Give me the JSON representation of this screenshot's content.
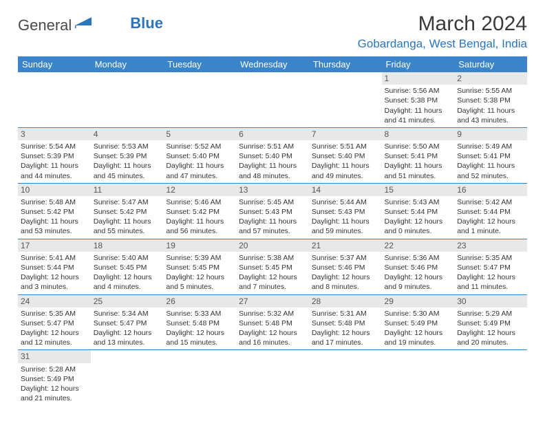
{
  "logo": {
    "text1": "General",
    "text2": "Blue"
  },
  "title": "March 2024",
  "location": "Gobardanga, West Bengal, India",
  "colors": {
    "header_bg": "#3a85c9",
    "accent": "#2a75bb",
    "daynum_bg": "#e8e8e8",
    "row_border": "#3a85c9",
    "text": "#333333",
    "bg": "#ffffff"
  },
  "day_headers": [
    "Sunday",
    "Monday",
    "Tuesday",
    "Wednesday",
    "Thursday",
    "Friday",
    "Saturday"
  ],
  "weeks": [
    [
      null,
      null,
      null,
      null,
      null,
      {
        "n": "1",
        "sr": "5:56 AM",
        "ss": "5:38 PM",
        "dl": "11 hours and 41 minutes."
      },
      {
        "n": "2",
        "sr": "5:55 AM",
        "ss": "5:38 PM",
        "dl": "11 hours and 43 minutes."
      }
    ],
    [
      {
        "n": "3",
        "sr": "5:54 AM",
        "ss": "5:39 PM",
        "dl": "11 hours and 44 minutes."
      },
      {
        "n": "4",
        "sr": "5:53 AM",
        "ss": "5:39 PM",
        "dl": "11 hours and 45 minutes."
      },
      {
        "n": "5",
        "sr": "5:52 AM",
        "ss": "5:40 PM",
        "dl": "11 hours and 47 minutes."
      },
      {
        "n": "6",
        "sr": "5:51 AM",
        "ss": "5:40 PM",
        "dl": "11 hours and 48 minutes."
      },
      {
        "n": "7",
        "sr": "5:51 AM",
        "ss": "5:40 PM",
        "dl": "11 hours and 49 minutes."
      },
      {
        "n": "8",
        "sr": "5:50 AM",
        "ss": "5:41 PM",
        "dl": "11 hours and 51 minutes."
      },
      {
        "n": "9",
        "sr": "5:49 AM",
        "ss": "5:41 PM",
        "dl": "11 hours and 52 minutes."
      }
    ],
    [
      {
        "n": "10",
        "sr": "5:48 AM",
        "ss": "5:42 PM",
        "dl": "11 hours and 53 minutes."
      },
      {
        "n": "11",
        "sr": "5:47 AM",
        "ss": "5:42 PM",
        "dl": "11 hours and 55 minutes."
      },
      {
        "n": "12",
        "sr": "5:46 AM",
        "ss": "5:42 PM",
        "dl": "11 hours and 56 minutes."
      },
      {
        "n": "13",
        "sr": "5:45 AM",
        "ss": "5:43 PM",
        "dl": "11 hours and 57 minutes."
      },
      {
        "n": "14",
        "sr": "5:44 AM",
        "ss": "5:43 PM",
        "dl": "11 hours and 59 minutes."
      },
      {
        "n": "15",
        "sr": "5:43 AM",
        "ss": "5:44 PM",
        "dl": "12 hours and 0 minutes."
      },
      {
        "n": "16",
        "sr": "5:42 AM",
        "ss": "5:44 PM",
        "dl": "12 hours and 1 minute."
      }
    ],
    [
      {
        "n": "17",
        "sr": "5:41 AM",
        "ss": "5:44 PM",
        "dl": "12 hours and 3 minutes."
      },
      {
        "n": "18",
        "sr": "5:40 AM",
        "ss": "5:45 PM",
        "dl": "12 hours and 4 minutes."
      },
      {
        "n": "19",
        "sr": "5:39 AM",
        "ss": "5:45 PM",
        "dl": "12 hours and 5 minutes."
      },
      {
        "n": "20",
        "sr": "5:38 AM",
        "ss": "5:45 PM",
        "dl": "12 hours and 7 minutes."
      },
      {
        "n": "21",
        "sr": "5:37 AM",
        "ss": "5:46 PM",
        "dl": "12 hours and 8 minutes."
      },
      {
        "n": "22",
        "sr": "5:36 AM",
        "ss": "5:46 PM",
        "dl": "12 hours and 9 minutes."
      },
      {
        "n": "23",
        "sr": "5:35 AM",
        "ss": "5:47 PM",
        "dl": "12 hours and 11 minutes."
      }
    ],
    [
      {
        "n": "24",
        "sr": "5:35 AM",
        "ss": "5:47 PM",
        "dl": "12 hours and 12 minutes."
      },
      {
        "n": "25",
        "sr": "5:34 AM",
        "ss": "5:47 PM",
        "dl": "12 hours and 13 minutes."
      },
      {
        "n": "26",
        "sr": "5:33 AM",
        "ss": "5:48 PM",
        "dl": "12 hours and 15 minutes."
      },
      {
        "n": "27",
        "sr": "5:32 AM",
        "ss": "5:48 PM",
        "dl": "12 hours and 16 minutes."
      },
      {
        "n": "28",
        "sr": "5:31 AM",
        "ss": "5:48 PM",
        "dl": "12 hours and 17 minutes."
      },
      {
        "n": "29",
        "sr": "5:30 AM",
        "ss": "5:49 PM",
        "dl": "12 hours and 19 minutes."
      },
      {
        "n": "30",
        "sr": "5:29 AM",
        "ss": "5:49 PM",
        "dl": "12 hours and 20 minutes."
      }
    ],
    [
      {
        "n": "31",
        "sr": "5:28 AM",
        "ss": "5:49 PM",
        "dl": "12 hours and 21 minutes."
      },
      null,
      null,
      null,
      null,
      null,
      null
    ]
  ],
  "labels": {
    "sunrise": "Sunrise:",
    "sunset": "Sunset:",
    "daylight": "Daylight:"
  }
}
